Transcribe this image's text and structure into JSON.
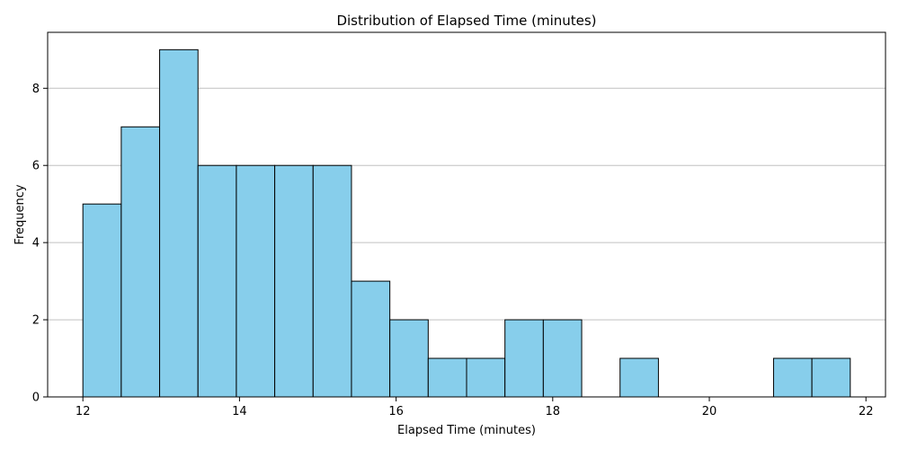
{
  "chart_data": {
    "type": "bar",
    "subtype": "histogram",
    "title": "Distribution of Elapsed Time (minutes)",
    "xlabel": "Elapsed Time (minutes)",
    "ylabel": "Frequency",
    "xlim": [
      11.55,
      22.25
    ],
    "ylim": [
      0,
      9.45
    ],
    "xticks": [
      12,
      14,
      16,
      18,
      20,
      22
    ],
    "yticks": [
      0,
      2,
      4,
      6,
      8
    ],
    "bins": [
      {
        "start": 12.0,
        "end": 12.49,
        "count": 5
      },
      {
        "start": 12.49,
        "end": 12.98,
        "count": 7
      },
      {
        "start": 12.98,
        "end": 13.47,
        "count": 9
      },
      {
        "start": 13.47,
        "end": 13.96,
        "count": 6
      },
      {
        "start": 13.96,
        "end": 14.45,
        "count": 6
      },
      {
        "start": 14.45,
        "end": 14.94,
        "count": 6
      },
      {
        "start": 14.94,
        "end": 15.43,
        "count": 6
      },
      {
        "start": 15.43,
        "end": 15.92,
        "count": 3
      },
      {
        "start": 15.92,
        "end": 16.41,
        "count": 2
      },
      {
        "start": 16.41,
        "end": 16.9,
        "count": 1
      },
      {
        "start": 16.9,
        "end": 17.39,
        "count": 1
      },
      {
        "start": 17.39,
        "end": 17.88,
        "count": 2
      },
      {
        "start": 17.88,
        "end": 18.37,
        "count": 2
      },
      {
        "start": 18.37,
        "end": 18.86,
        "count": 0
      },
      {
        "start": 18.86,
        "end": 19.35,
        "count": 1
      },
      {
        "start": 19.35,
        "end": 19.84,
        "count": 0
      },
      {
        "start": 19.84,
        "end": 20.33,
        "count": 0
      },
      {
        "start": 20.33,
        "end": 20.82,
        "count": 0
      },
      {
        "start": 20.82,
        "end": 21.31,
        "count": 1
      },
      {
        "start": 21.31,
        "end": 21.8,
        "count": 1
      }
    ],
    "grid": {
      "y": true,
      "x": false
    },
    "colors": {
      "bar_fill": "#87ceeb",
      "bar_edge": "#000000",
      "grid": "#c0c0c0"
    }
  }
}
